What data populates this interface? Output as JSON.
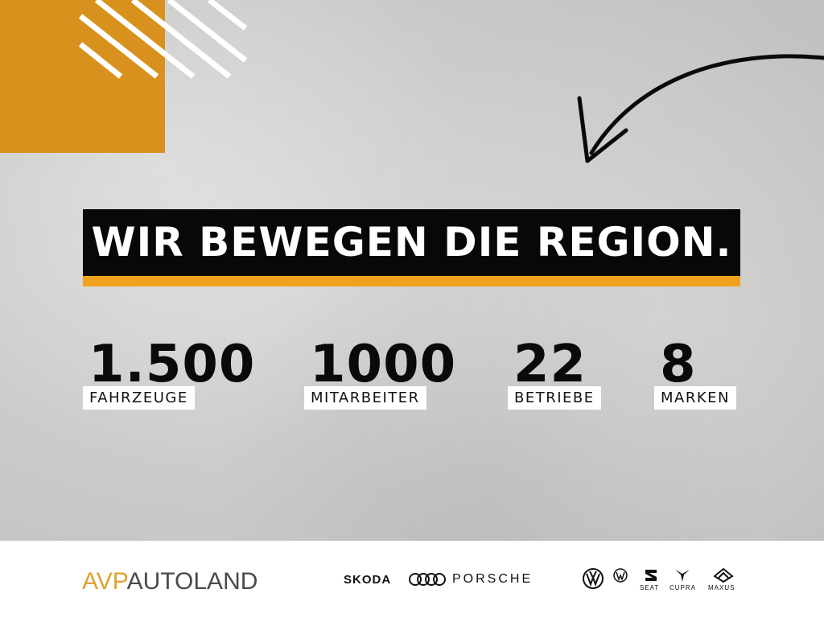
{
  "headline": "WIR BEWEGEN DIE REGION.",
  "stats": [
    {
      "value": "1.500",
      "label": "FAHRZEUGE"
    },
    {
      "value": "1000",
      "label": "MITARBEITER"
    },
    {
      "value": "22",
      "label": "BETRIEBE"
    },
    {
      "value": "8",
      "label": "MARKEN"
    }
  ],
  "logo": {
    "part1": "AVP",
    "part2": "AUTOLAND"
  },
  "brands": [
    "SKODA",
    "Audi",
    "PORSCHE",
    "Volkswagen",
    "Volkswagen Nutzfahrzeuge",
    "SEAT",
    "CUPRA",
    "MAXUS"
  ],
  "brand_labels": {
    "skoda": "SKODA",
    "porsche": "PORSCHE",
    "seat": "SEAT",
    "cupra": "CUPRA",
    "maxus": "MAXUS"
  },
  "colors": {
    "orange": "#d8911c",
    "accent": "#f0a21e",
    "banner": "#080808",
    "logo_orange": "#e0a12e",
    "logo_gray": "#4a4a4a"
  }
}
